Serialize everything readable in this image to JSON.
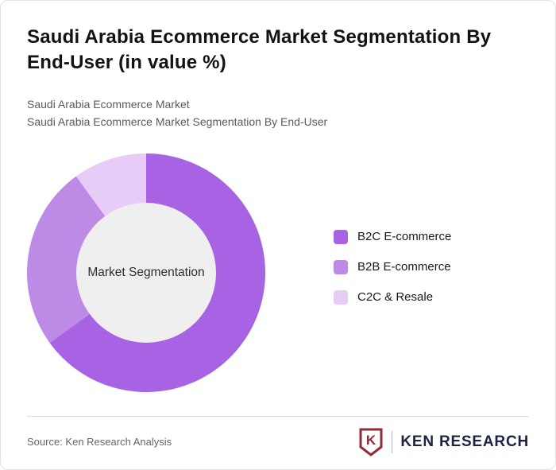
{
  "page": {
    "title": "Saudi Arabia Ecommerce Market Segmentation By End-User (in value %)",
    "subtitle_line1": "Saudi Arabia Ecommerce Market",
    "subtitle_line2": "Saudi Arabia Ecommerce Market Segmentation By End-User"
  },
  "chart_data": {
    "type": "pie",
    "variant": "donut",
    "title": "Saudi Arabia Ecommerce Market Segmentation By End-User (in value %)",
    "center_label": "Market Segmentation",
    "legend_position": "right",
    "start_angle_deg": 0,
    "direction": "clockwise",
    "segments": [
      {
        "label": "B2C E-commerce",
        "value_pct": 65,
        "color": "#a763e3"
      },
      {
        "label": "B2B E-commerce",
        "value_pct": 25,
        "color": "#bd8ae5"
      },
      {
        "label": "C2C & Resale",
        "value_pct": 10,
        "color": "#e6ccf7"
      }
    ],
    "inner_circle_color": "#efefef"
  },
  "footer": {
    "source_text": "Source: Ken Research Analysis",
    "logo": {
      "badge_letter": "K",
      "text": "KEN RESEARCH",
      "badge_color": "#8b2e39",
      "text_color": "#1c2340"
    }
  }
}
